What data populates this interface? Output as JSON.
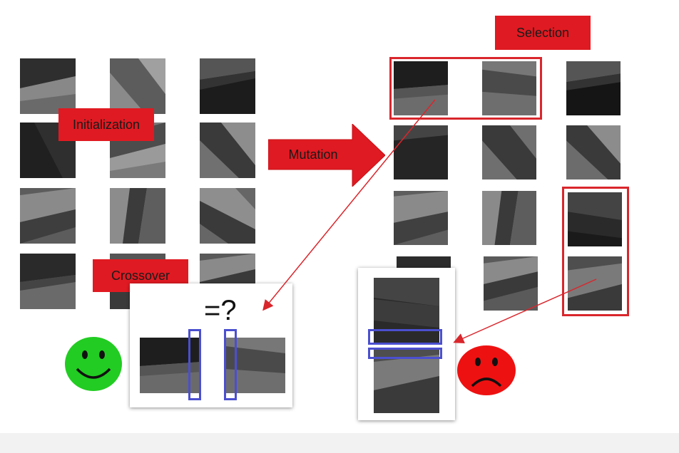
{
  "labels": {
    "initialization": "Initialization",
    "mutation": "Mutation",
    "selection": "Selection",
    "crossover": "Crossover",
    "equals_question": "=?"
  },
  "colors": {
    "label_red": "#e01a22",
    "arrow_red": "#d9262c",
    "box_blue": "#4b4fcf",
    "smiley_green": "#22cc22",
    "frown_red": "#ee1111"
  },
  "icons": {
    "happy": "smiley-face-icon",
    "sad": "frowning-face-icon"
  }
}
